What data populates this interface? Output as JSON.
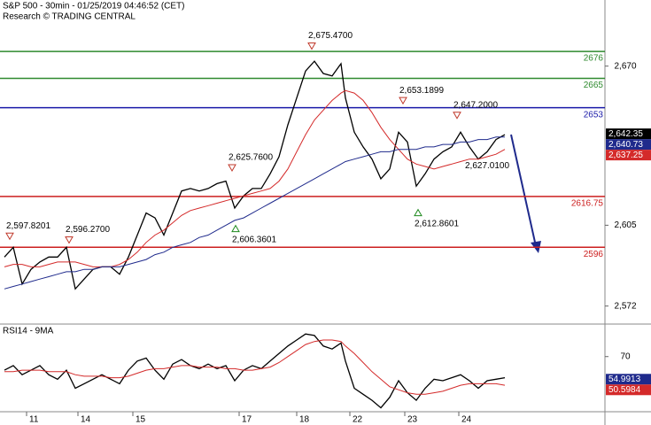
{
  "chart_data": [
    {
      "type": "line",
      "title": "S&P 500 - 30min - 01/25/2019 04:46:52 (CET)",
      "subtitle": "Research © TRADING CENTRAL",
      "x": [
        0,
        1,
        2,
        3,
        4,
        5,
        6,
        7,
        8,
        9,
        10,
        11,
        12,
        13,
        14,
        15,
        16,
        17,
        18,
        19,
        20,
        21,
        22,
        23,
        24,
        25,
        26,
        27,
        28,
        29,
        30,
        31,
        32,
        33,
        34,
        35,
        36,
        37,
        38,
        38.5,
        39.5,
        40.5,
        41.5,
        42.5,
        43.5,
        44.5,
        45.5,
        46.5,
        47.5,
        48.5,
        49.5,
        50.5,
        51.5,
        52.5,
        53.5,
        54.5,
        55.5,
        56.5
      ],
      "xlim": [
        -0.5,
        67.8
      ],
      "xticks": [
        {
          "value": 2.5,
          "label": "11"
        },
        {
          "value": 8.3,
          "label": "14"
        },
        {
          "value": 14.5,
          "label": "15"
        },
        {
          "value": 26.5,
          "label": "17"
        },
        {
          "value": 33,
          "label": "18"
        },
        {
          "value": 39,
          "label": "22"
        },
        {
          "value": 45.2,
          "label": "23"
        },
        {
          "value": 51.3,
          "label": "24"
        }
      ],
      "ylim": [
        2565,
        2697
      ],
      "yticks": [
        {
          "value": 2670,
          "label": "2,670"
        },
        {
          "value": 2605,
          "label": "2,605"
        },
        {
          "value": 2572,
          "label": "2,572"
        }
      ],
      "series": [
        {
          "color": "#000000",
          "values": [
            2592,
            2596,
            2581,
            2587,
            2590,
            2592,
            2592,
            2596,
            2579,
            2583,
            2587,
            2588,
            2588,
            2585,
            2592,
            2601,
            2610,
            2608,
            2601,
            2610,
            2619,
            2620,
            2619,
            2620,
            2622,
            2623,
            2612,
            2617,
            2620,
            2620,
            2626,
            2633,
            2646,
            2657,
            2668,
            2672,
            2667,
            2666,
            2671,
            2657,
            2643,
            2637,
            2632,
            2624,
            2628,
            2643,
            2639,
            2621,
            2626,
            2632,
            2635,
            2637,
            2643,
            2637,
            2632,
            2635,
            2640,
            2642
          ]
        },
        {
          "color": "#d42a2a",
          "values": [
            2588,
            2589,
            2589,
            2588,
            2588,
            2589,
            2590,
            2590,
            2590,
            2589,
            2588,
            2588,
            2588,
            2589,
            2591,
            2594,
            2598,
            2601,
            2603,
            2606,
            2609,
            2611,
            2612,
            2613,
            2614,
            2615,
            2616,
            2617,
            2618,
            2619,
            2620,
            2623,
            2628,
            2635,
            2642,
            2648,
            2652,
            2656,
            2659,
            2660,
            2659,
            2656,
            2651,
            2645,
            2640,
            2636,
            2632,
            2630,
            2629,
            2628,
            2629,
            2630,
            2631,
            2632,
            2632,
            2633,
            2634,
            2636
          ]
        },
        {
          "color": "#1f2a8c",
          "values": [
            2579,
            2580,
            2581,
            2582,
            2583,
            2584,
            2585,
            2586,
            2586,
            2587,
            2587,
            2588,
            2588,
            2588,
            2589,
            2590,
            2591,
            2593,
            2594,
            2596,
            2597,
            2598,
            2600,
            2601,
            2603,
            2605,
            2607,
            2608,
            2610,
            2612,
            2614,
            2616,
            2618,
            2620,
            2622,
            2624,
            2626,
            2628,
            2630,
            2631,
            2632,
            2633,
            2634,
            2635,
            2635,
            2636,
            2636,
            2636,
            2637,
            2637,
            2638,
            2638,
            2639,
            2639,
            2640,
            2640,
            2641,
            2641
          ]
        }
      ],
      "levels": [
        {
          "value": 2676,
          "color": "#2f8a2f"
        },
        {
          "value": 2665,
          "color": "#2f8a2f"
        },
        {
          "value": 2653,
          "color": "#1a1aa8"
        },
        {
          "value": 2616.75,
          "color": "#cc1f1f"
        },
        {
          "value": 2596,
          "color": "#cc1f1f"
        }
      ],
      "annotations": [
        {
          "label": "2,675.4700",
          "value": 2675.47,
          "x": 34.7,
          "marker": "down"
        },
        {
          "label": "2,653.1899",
          "value": 2653.1899,
          "x": 45,
          "marker": "down"
        },
        {
          "label": "2,647.2000",
          "value": 2647.2,
          "x": 51.1,
          "marker": "down"
        },
        {
          "label": "2,625.7600",
          "value": 2625.76,
          "x": 25.7,
          "marker": "down"
        },
        {
          "label": "2,597.8201",
          "value": 2597.8201,
          "x": 0.6,
          "marker": "down"
        },
        {
          "label": "2,596.2700",
          "value": 2596.27,
          "x": 7.3,
          "marker": "down"
        },
        {
          "label": "2,606.3601",
          "value": 2606.3601,
          "x": 26.1,
          "marker": "up"
        },
        {
          "label": "2,612.8601",
          "value": 2612.8601,
          "x": 46.7,
          "marker": "up"
        },
        {
          "label": "2,627.0100",
          "value": 2627.01,
          "x": 53.5,
          "marker": "none"
        }
      ],
      "price_labels": [
        {
          "label": "2,642.35",
          "value": 2642.35,
          "color": "#000000"
        },
        {
          "label": "2,640.73",
          "value": 2640.73,
          "color": "#1f2a8c"
        },
        {
          "label": "2,637.25",
          "value": 2637.25,
          "color": "#d42a2a"
        }
      ]
    },
    {
      "type": "line",
      "title": "RSI14 - 9MA",
      "x": [
        0,
        1,
        2,
        3,
        4,
        5,
        6,
        7,
        8,
        9,
        10,
        11,
        12,
        13,
        14,
        15,
        16,
        17,
        18,
        19,
        20,
        21,
        22,
        23,
        24,
        25,
        26,
        27,
        28,
        29,
        30,
        31,
        32,
        33,
        34,
        35,
        36,
        37,
        38,
        38.5,
        39.5,
        40.5,
        41.5,
        42.5,
        43.5,
        44.5,
        45.5,
        46.5,
        47.5,
        48.5,
        49.5,
        50.5,
        51.5,
        52.5,
        53.5,
        54.5,
        55.5,
        56.5
      ],
      "xlim": [
        -0.5,
        67.8
      ],
      "ylim": [
        34,
        91
      ],
      "yticks": [
        70
      ],
      "series": [
        {
          "color": "#000000",
          "values": [
            61,
            64,
            58,
            61,
            64,
            58,
            55,
            61,
            49,
            52,
            55,
            58,
            55,
            52,
            61,
            67,
            69,
            61,
            55,
            65,
            68,
            64,
            62,
            65,
            62,
            64,
            54,
            61,
            64,
            62,
            67,
            72,
            77,
            81,
            85,
            84,
            77,
            75,
            79,
            67,
            49,
            45,
            41,
            36,
            43,
            54,
            46,
            41,
            49,
            55,
            54,
            56,
            58,
            54,
            49,
            54,
            55,
            56
          ]
        },
        {
          "color": "#d42a2a",
          "values": [
            60,
            60,
            61,
            61,
            61,
            60,
            60,
            60,
            58,
            57,
            57,
            57,
            56,
            56,
            57,
            59,
            61,
            62,
            62,
            63,
            64,
            64,
            63,
            63,
            63,
            62,
            62,
            61,
            61,
            62,
            63,
            66,
            70,
            74,
            78,
            80,
            81,
            81,
            80,
            77,
            72,
            66,
            60,
            55,
            50,
            48,
            46,
            45,
            45,
            46,
            47,
            49,
            51,
            52,
            52,
            52,
            52,
            51
          ]
        }
      ],
      "price_labels": [
        {
          "label": "54.9913",
          "value": 54.9913,
          "color": "#1f2a8c"
        },
        {
          "label": "50.5984",
          "value": 50.5984,
          "color": "#d42a2a"
        }
      ]
    }
  ]
}
